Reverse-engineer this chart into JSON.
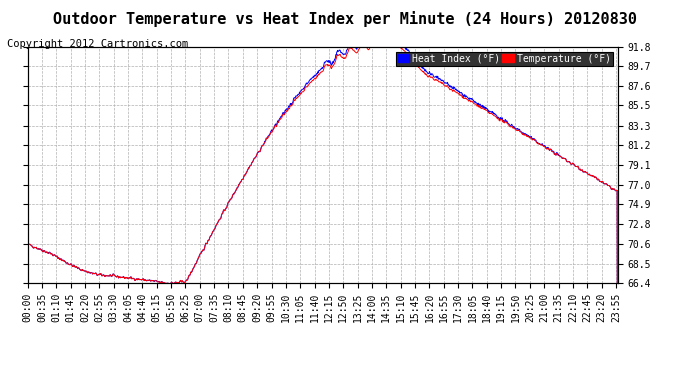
{
  "title": "Outdoor Temperature vs Heat Index per Minute (24 Hours) 20120830",
  "copyright": "Copyright 2012 Cartronics.com",
  "yticks": [
    66.4,
    68.5,
    70.6,
    72.8,
    74.9,
    77.0,
    79.1,
    81.2,
    83.3,
    85.5,
    87.6,
    89.7,
    91.8
  ],
  "ymin": 66.4,
  "ymax": 91.8,
  "bg_color": "#ffffff",
  "plot_bg_color": "#ffffff",
  "grid_color": "#b0b0b0",
  "temp_color": "#ff0000",
  "heat_color": "#0000ff",
  "title_fontsize": 11,
  "copyright_fontsize": 7.5,
  "tick_fontsize": 7
}
